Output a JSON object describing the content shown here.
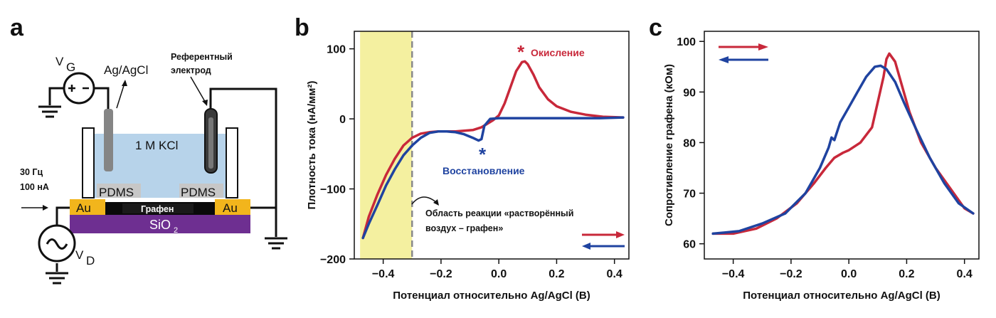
{
  "panels": {
    "a": {
      "letter": "a",
      "gate_symbol": "V",
      "gate_sub": "G",
      "ref_label": "Ag/AgCl",
      "ref_electrode_label": [
        "Референтный",
        "электрод"
      ],
      "electrolyte": "1 M KCl",
      "pdms_left": "PDMS",
      "pdms_right": "PDMS",
      "au_left": "Au",
      "au_right": "Au",
      "graphene": "Графен",
      "substrate_main": "SiO",
      "substrate_sub": "2",
      "ac_freq": "30 Гц",
      "ac_current": "100 нА",
      "drain_symbol": "V",
      "drain_sub": "D"
    },
    "b": {
      "letter": "b",
      "oxidation_label": "Окисление",
      "reduction_label": "Восстановление",
      "region_label": [
        "Область реакции «растворённый",
        "воздух – графен»"
      ],
      "marker": "*"
    },
    "c": {
      "letter": "c"
    }
  },
  "colors": {
    "forward": "#c8283a",
    "reverse": "#1f43a0",
    "highlight": "#f4f0a0",
    "electrolyte": "#b7d3ea",
    "gold": "#f2b51c",
    "substrate": "#6e2f91",
    "pdms": "#c7c7c7"
  },
  "chart_data": [
    {
      "type": "line",
      "panel": "b",
      "xlabel": "Потенциал относительно Ag/AgCl (В)",
      "ylabel": "Плотность тока (нА/мм²)",
      "xlim": [
        -0.5,
        0.45
      ],
      "ylim": [
        -200,
        125
      ],
      "xticks": [
        -0.4,
        -0.2,
        0.0,
        0.2,
        0.4
      ],
      "xtick_labels": [
        "−0.4",
        "−0.2",
        "0.0",
        "0.2",
        "0.4"
      ],
      "yticks": [
        -200,
        -100,
        0,
        100
      ],
      "ytick_labels": [
        "−200",
        "−100",
        "0",
        "100"
      ],
      "highlight_region_x": [
        -0.48,
        -0.3
      ],
      "grid": false,
      "series": [
        {
          "direction": "forward",
          "x": [
            -0.47,
            -0.45,
            -0.42,
            -0.39,
            -0.36,
            -0.33,
            -0.3,
            -0.27,
            -0.24,
            -0.21,
            -0.18,
            -0.15,
            -0.12,
            -0.09,
            -0.06,
            -0.04,
            -0.02,
            0.0,
            0.02,
            0.04,
            0.06,
            0.08,
            0.09,
            0.1,
            0.12,
            0.14,
            0.17,
            0.2,
            0.25,
            0.3,
            0.36,
            0.43
          ],
          "y": [
            -170,
            -140,
            -108,
            -80,
            -57,
            -38,
            -27,
            -21,
            -19,
            -18,
            -18,
            -18,
            -17,
            -16,
            -12,
            -7,
            -2,
            5,
            22,
            45,
            68,
            81,
            82,
            78,
            63,
            45,
            28,
            18,
            10,
            6,
            3,
            2
          ]
        },
        {
          "direction": "reverse",
          "x": [
            0.43,
            0.35,
            0.25,
            0.15,
            0.05,
            0.0,
            -0.03,
            -0.05,
            -0.06,
            -0.07,
            -0.09,
            -0.12,
            -0.15,
            -0.18,
            -0.21,
            -0.24,
            -0.27,
            -0.3,
            -0.33,
            -0.36,
            -0.39,
            -0.42,
            -0.45,
            -0.47
          ],
          "y": [
            2,
            1,
            1,
            1,
            1,
            1,
            0,
            -10,
            -29,
            -31,
            -27,
            -22,
            -19,
            -18,
            -18,
            -20,
            -27,
            -38,
            -52,
            -72,
            -95,
            -123,
            -150,
            -170
          ]
        }
      ]
    },
    {
      "type": "line",
      "panel": "c",
      "xlabel": "Потенциал относительно Ag/AgCl (В)",
      "ylabel": "Сопротивление графена (кОм)",
      "xlim": [
        -0.5,
        0.45
      ],
      "ylim": [
        57,
        102
      ],
      "xticks": [
        -0.4,
        -0.2,
        0.0,
        0.2,
        0.4
      ],
      "xtick_labels": [
        "−0.4",
        "−0.2",
        "0.0",
        "0.2",
        "0.4"
      ],
      "yticks": [
        60,
        70,
        80,
        90,
        100
      ],
      "ytick_labels": [
        "60",
        "70",
        "80",
        "90",
        "100"
      ],
      "grid": false,
      "series": [
        {
          "direction": "forward",
          "x": [
            -0.47,
            -0.4,
            -0.32,
            -0.25,
            -0.18,
            -0.12,
            -0.08,
            -0.05,
            -0.02,
            0.0,
            0.04,
            0.08,
            0.1,
            0.12,
            0.13,
            0.14,
            0.16,
            0.18,
            0.21,
            0.25,
            0.3,
            0.35,
            0.4,
            0.43
          ],
          "y": [
            62,
            62,
            63,
            65,
            68,
            72,
            75,
            77,
            78,
            78.5,
            80,
            83,
            88,
            93,
            96.5,
            97.6,
            96,
            92,
            86,
            80,
            75,
            71,
            67,
            66
          ]
        },
        {
          "direction": "reverse",
          "x": [
            0.43,
            0.38,
            0.33,
            0.28,
            0.23,
            0.19,
            0.16,
            0.13,
            0.11,
            0.09,
            0.06,
            0.03,
            0.0,
            -0.03,
            -0.05,
            -0.06,
            -0.07,
            -0.1,
            -0.15,
            -0.22,
            -0.3,
            -0.38,
            -0.47
          ],
          "y": [
            66,
            68,
            72,
            77,
            83,
            88,
            92,
            94.5,
            95.2,
            95,
            93,
            90,
            87,
            84,
            80.5,
            81,
            79,
            75,
            70,
            66,
            64,
            62.5,
            62
          ]
        }
      ]
    }
  ]
}
